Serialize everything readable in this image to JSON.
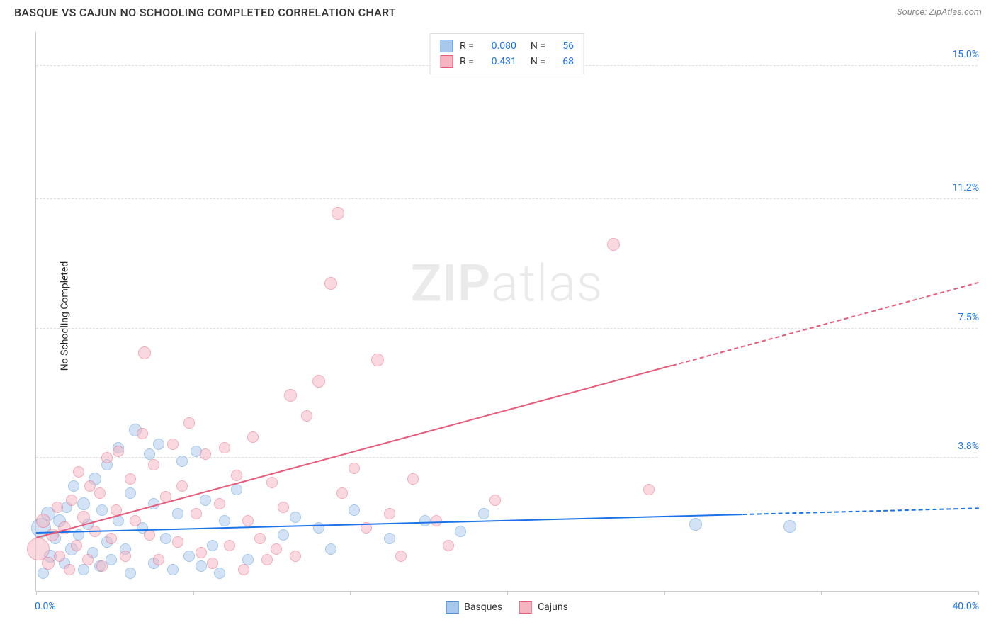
{
  "title": "BASQUE VS CAJUN NO SCHOOLING COMPLETED CORRELATION CHART",
  "source": "Source: ZipAtlas.com",
  "y_axis_label": "No Schooling Completed",
  "watermark_bold": "ZIP",
  "watermark_light": "atlas",
  "chart": {
    "type": "scatter",
    "xlim": [
      0,
      40
    ],
    "ylim": [
      0,
      16
    ],
    "x_ticks": [
      0,
      6.67,
      13.33,
      20,
      26.67,
      33.33,
      40
    ],
    "y_gridlines": [
      3.8,
      7.5,
      11.2,
      15.0
    ],
    "y_grid_labels": [
      "3.8%",
      "7.5%",
      "11.2%",
      "15.0%"
    ],
    "x_min_label": "0.0%",
    "x_max_label": "40.0%",
    "grid_color": "#e0e0e0",
    "background": "#ffffff",
    "series": [
      {
        "name": "Basques",
        "fill": "#a8c8ec",
        "fill_opacity": 0.5,
        "stroke": "#4a90d9",
        "R": "0.080",
        "N": "56",
        "trend": {
          "y_at_x0": 1.65,
          "y_at_x40": 2.35,
          "solid_until_x": 30,
          "color": "#1a73e8"
        },
        "points": [
          {
            "x": 0.2,
            "y": 1.8,
            "r": 14
          },
          {
            "x": 0.3,
            "y": 0.5,
            "r": 8
          },
          {
            "x": 0.5,
            "y": 2.2,
            "r": 10
          },
          {
            "x": 0.6,
            "y": 1.0,
            "r": 9
          },
          {
            "x": 0.8,
            "y": 1.5,
            "r": 8
          },
          {
            "x": 1.0,
            "y": 2.0,
            "r": 9
          },
          {
            "x": 1.2,
            "y": 0.8,
            "r": 8
          },
          {
            "x": 1.3,
            "y": 2.4,
            "r": 8
          },
          {
            "x": 1.5,
            "y": 1.2,
            "r": 9
          },
          {
            "x": 1.6,
            "y": 3.0,
            "r": 8
          },
          {
            "x": 1.8,
            "y": 1.6,
            "r": 8
          },
          {
            "x": 2.0,
            "y": 0.6,
            "r": 8
          },
          {
            "x": 2.0,
            "y": 2.5,
            "r": 9
          },
          {
            "x": 2.2,
            "y": 1.9,
            "r": 8
          },
          {
            "x": 2.4,
            "y": 1.1,
            "r": 8
          },
          {
            "x": 2.5,
            "y": 3.2,
            "r": 9
          },
          {
            "x": 2.7,
            "y": 0.7,
            "r": 8
          },
          {
            "x": 2.8,
            "y": 2.3,
            "r": 8
          },
          {
            "x": 3.0,
            "y": 1.4,
            "r": 8
          },
          {
            "x": 3.0,
            "y": 3.6,
            "r": 8
          },
          {
            "x": 3.2,
            "y": 0.9,
            "r": 8
          },
          {
            "x": 3.5,
            "y": 2.0,
            "r": 8
          },
          {
            "x": 3.5,
            "y": 4.1,
            "r": 8
          },
          {
            "x": 3.8,
            "y": 1.2,
            "r": 8
          },
          {
            "x": 4.0,
            "y": 2.8,
            "r": 8
          },
          {
            "x": 4.0,
            "y": 0.5,
            "r": 8
          },
          {
            "x": 4.2,
            "y": 4.6,
            "r": 9
          },
          {
            "x": 4.5,
            "y": 1.8,
            "r": 8
          },
          {
            "x": 4.8,
            "y": 3.9,
            "r": 8
          },
          {
            "x": 5.0,
            "y": 0.8,
            "r": 8
          },
          {
            "x": 5.0,
            "y": 2.5,
            "r": 8
          },
          {
            "x": 5.2,
            "y": 4.2,
            "r": 8
          },
          {
            "x": 5.5,
            "y": 1.5,
            "r": 8
          },
          {
            "x": 5.8,
            "y": 0.6,
            "r": 8
          },
          {
            "x": 6.0,
            "y": 2.2,
            "r": 8
          },
          {
            "x": 6.2,
            "y": 3.7,
            "r": 8
          },
          {
            "x": 6.5,
            "y": 1.0,
            "r": 8
          },
          {
            "x": 6.8,
            "y": 4.0,
            "r": 8
          },
          {
            "x": 7.0,
            "y": 0.7,
            "r": 8
          },
          {
            "x": 7.2,
            "y": 2.6,
            "r": 8
          },
          {
            "x": 7.5,
            "y": 1.3,
            "r": 8
          },
          {
            "x": 7.8,
            "y": 0.5,
            "r": 8
          },
          {
            "x": 8.0,
            "y": 2.0,
            "r": 8
          },
          {
            "x": 8.5,
            "y": 2.9,
            "r": 8
          },
          {
            "x": 9.0,
            "y": 0.9,
            "r": 8
          },
          {
            "x": 10.5,
            "y": 1.6,
            "r": 8
          },
          {
            "x": 11.0,
            "y": 2.1,
            "r": 8
          },
          {
            "x": 12.0,
            "y": 1.8,
            "r": 8
          },
          {
            "x": 12.5,
            "y": 1.2,
            "r": 8
          },
          {
            "x": 13.5,
            "y": 2.3,
            "r": 8
          },
          {
            "x": 15.0,
            "y": 1.5,
            "r": 8
          },
          {
            "x": 16.5,
            "y": 2.0,
            "r": 8
          },
          {
            "x": 18.0,
            "y": 1.7,
            "r": 8
          },
          {
            "x": 19.0,
            "y": 2.2,
            "r": 8
          },
          {
            "x": 28.0,
            "y": 1.9,
            "r": 9
          },
          {
            "x": 32.0,
            "y": 1.85,
            "r": 9
          }
        ]
      },
      {
        "name": "Cajuns",
        "fill": "#f5b5c0",
        "fill_opacity": 0.5,
        "stroke": "#e85a7a",
        "R": "0.431",
        "N": "68",
        "trend": {
          "y_at_x0": 1.5,
          "y_at_x40": 8.8,
          "solid_until_x": 27,
          "color": "#e85a7a"
        },
        "points": [
          {
            "x": 0.1,
            "y": 1.2,
            "r": 16
          },
          {
            "x": 0.3,
            "y": 2.0,
            "r": 10
          },
          {
            "x": 0.5,
            "y": 0.8,
            "r": 9
          },
          {
            "x": 0.7,
            "y": 1.6,
            "r": 9
          },
          {
            "x": 0.9,
            "y": 2.4,
            "r": 8
          },
          {
            "x": 1.0,
            "y": 1.0,
            "r": 8
          },
          {
            "x": 1.2,
            "y": 1.8,
            "r": 9
          },
          {
            "x": 1.4,
            "y": 0.6,
            "r": 8
          },
          {
            "x": 1.5,
            "y": 2.6,
            "r": 8
          },
          {
            "x": 1.7,
            "y": 1.3,
            "r": 8
          },
          {
            "x": 1.8,
            "y": 3.4,
            "r": 8
          },
          {
            "x": 2.0,
            "y": 2.1,
            "r": 9
          },
          {
            "x": 2.2,
            "y": 0.9,
            "r": 8
          },
          {
            "x": 2.3,
            "y": 3.0,
            "r": 8
          },
          {
            "x": 2.5,
            "y": 1.7,
            "r": 8
          },
          {
            "x": 2.7,
            "y": 2.8,
            "r": 8
          },
          {
            "x": 2.8,
            "y": 0.7,
            "r": 8
          },
          {
            "x": 3.0,
            "y": 3.8,
            "r": 8
          },
          {
            "x": 3.2,
            "y": 1.5,
            "r": 8
          },
          {
            "x": 3.4,
            "y": 2.3,
            "r": 8
          },
          {
            "x": 3.5,
            "y": 4.0,
            "r": 8
          },
          {
            "x": 3.8,
            "y": 1.0,
            "r": 8
          },
          {
            "x": 4.0,
            "y": 3.2,
            "r": 8
          },
          {
            "x": 4.2,
            "y": 2.0,
            "r": 8
          },
          {
            "x": 4.5,
            "y": 4.5,
            "r": 8
          },
          {
            "x": 4.6,
            "y": 6.8,
            "r": 9
          },
          {
            "x": 4.8,
            "y": 1.6,
            "r": 8
          },
          {
            "x": 5.0,
            "y": 3.6,
            "r": 8
          },
          {
            "x": 5.2,
            "y": 0.9,
            "r": 8
          },
          {
            "x": 5.5,
            "y": 2.7,
            "r": 8
          },
          {
            "x": 5.8,
            "y": 4.2,
            "r": 8
          },
          {
            "x": 6.0,
            "y": 1.4,
            "r": 8
          },
          {
            "x": 6.2,
            "y": 3.0,
            "r": 8
          },
          {
            "x": 6.5,
            "y": 4.8,
            "r": 8
          },
          {
            "x": 6.8,
            "y": 2.2,
            "r": 8
          },
          {
            "x": 7.0,
            "y": 1.1,
            "r": 8
          },
          {
            "x": 7.2,
            "y": 3.9,
            "r": 8
          },
          {
            "x": 7.5,
            "y": 0.8,
            "r": 8
          },
          {
            "x": 7.8,
            "y": 2.5,
            "r": 8
          },
          {
            "x": 8.0,
            "y": 4.1,
            "r": 8
          },
          {
            "x": 8.2,
            "y": 1.3,
            "r": 8
          },
          {
            "x": 8.5,
            "y": 3.3,
            "r": 8
          },
          {
            "x": 8.8,
            "y": 0.6,
            "r": 8
          },
          {
            "x": 9.0,
            "y": 2.0,
            "r": 8
          },
          {
            "x": 9.2,
            "y": 4.4,
            "r": 8
          },
          {
            "x": 9.5,
            "y": 1.5,
            "r": 8
          },
          {
            "x": 9.8,
            "y": 0.9,
            "r": 8
          },
          {
            "x": 10.0,
            "y": 3.1,
            "r": 8
          },
          {
            "x": 10.2,
            "y": 1.2,
            "r": 8
          },
          {
            "x": 10.5,
            "y": 2.4,
            "r": 8
          },
          {
            "x": 10.8,
            "y": 5.6,
            "r": 9
          },
          {
            "x": 11.0,
            "y": 1.0,
            "r": 8
          },
          {
            "x": 11.5,
            "y": 5.0,
            "r": 8
          },
          {
            "x": 12.0,
            "y": 6.0,
            "r": 9
          },
          {
            "x": 12.5,
            "y": 8.8,
            "r": 9
          },
          {
            "x": 12.8,
            "y": 10.8,
            "r": 9
          },
          {
            "x": 13.0,
            "y": 2.8,
            "r": 8
          },
          {
            "x": 13.5,
            "y": 3.5,
            "r": 8
          },
          {
            "x": 14.0,
            "y": 1.8,
            "r": 8
          },
          {
            "x": 14.5,
            "y": 6.6,
            "r": 9
          },
          {
            "x": 15.0,
            "y": 2.2,
            "r": 8
          },
          {
            "x": 15.5,
            "y": 1.0,
            "r": 8
          },
          {
            "x": 16.0,
            "y": 3.2,
            "r": 8
          },
          {
            "x": 17.0,
            "y": 2.0,
            "r": 8
          },
          {
            "x": 17.5,
            "y": 1.3,
            "r": 8
          },
          {
            "x": 19.5,
            "y": 2.6,
            "r": 8
          },
          {
            "x": 24.5,
            "y": 9.9,
            "r": 9
          },
          {
            "x": 26.0,
            "y": 2.9,
            "r": 8
          }
        ]
      }
    ],
    "bottom_legend": [
      {
        "label": "Basques",
        "fill": "#a8c8ec",
        "stroke": "#4a90d9"
      },
      {
        "label": "Cajuns",
        "fill": "#f5b5c0",
        "stroke": "#e85a7a"
      }
    ]
  }
}
